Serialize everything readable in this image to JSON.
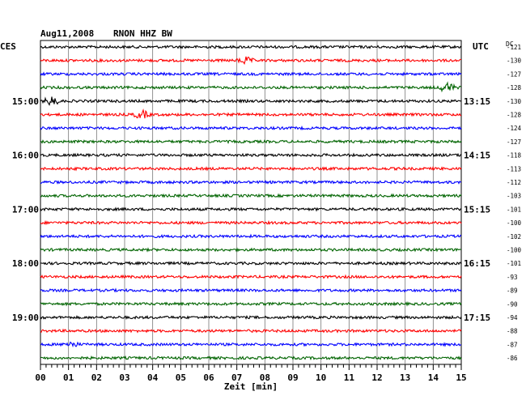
{
  "header": {
    "date": "Aug11,2008",
    "station": "RNON HHZ BW",
    "left_tz": "CES",
    "right_tz": "UTC",
    "dc_label": "DC"
  },
  "colors": [
    "#000000",
    "#ff0000",
    "#0000ff",
    "#006400"
  ],
  "chart_data": {
    "type": "line",
    "xlabel": "Zeit [min]",
    "x_ticks": [
      "00",
      "01",
      "02",
      "03",
      "04",
      "05",
      "06",
      "07",
      "08",
      "09",
      "10",
      "11",
      "12",
      "13",
      "14",
      "15"
    ],
    "xlim": [
      0,
      15
    ],
    "left_hour_labels": [
      {
        "row": 4,
        "text": "15:00"
      },
      {
        "row": 8,
        "text": "16:00"
      },
      {
        "row": 12,
        "text": "17:00"
      },
      {
        "row": 16,
        "text": "18:00"
      },
      {
        "row": 20,
        "text": "19:00"
      }
    ],
    "right_hour_labels": [
      {
        "row": 4,
        "text": "13:15"
      },
      {
        "row": 8,
        "text": "14:15"
      },
      {
        "row": 12,
        "text": "15:15"
      },
      {
        "row": 16,
        "text": "16:15"
      },
      {
        "row": 20,
        "text": "17:15"
      }
    ],
    "dc_offsets": [
      "-121",
      "-130",
      "-127",
      "-128",
      "-130",
      "-128",
      "-124",
      "-127",
      "-118",
      "-113",
      "-112",
      "-103",
      "-101",
      "-100",
      "-102",
      "-100",
      "-101",
      "-93",
      "-89",
      "-90",
      "-94",
      "-88",
      "-87",
      "-86"
    ],
    "events": [
      {
        "row": 1,
        "minute": 7.3,
        "amp": 4
      },
      {
        "row": 3,
        "minute": 14.5,
        "amp": 6
      },
      {
        "row": 4,
        "minute": 0.4,
        "amp": 5
      },
      {
        "row": 5,
        "minute": 3.6,
        "amp": 5
      },
      {
        "row": 22,
        "minute": 1.1,
        "amp": 3
      }
    ],
    "grid": true
  }
}
